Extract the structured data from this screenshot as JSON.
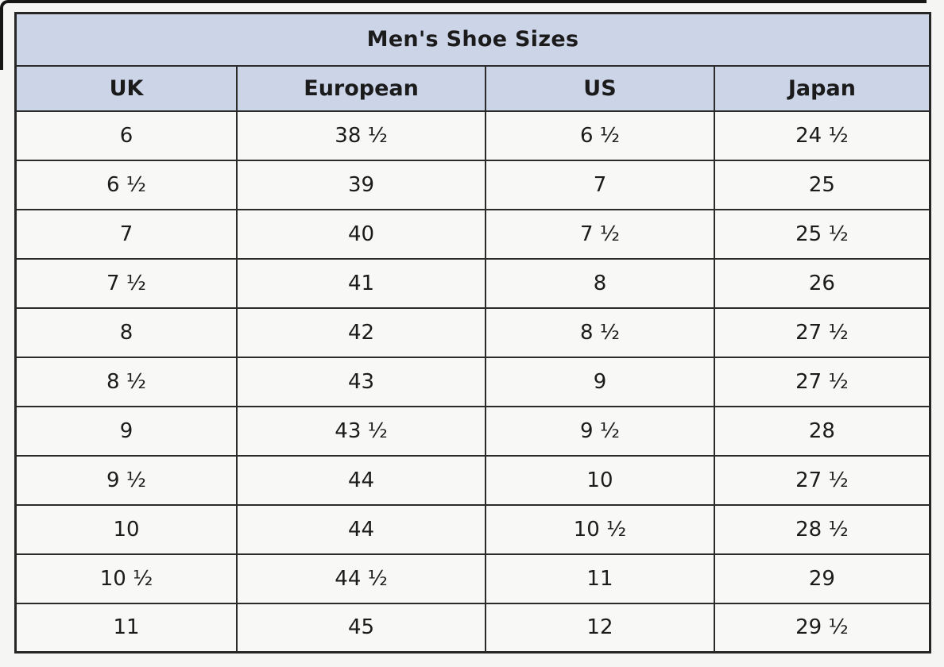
{
  "colors": {
    "header_bg": "#ccd4e8",
    "cell_bg": "#f8f8f6",
    "border": "#2b2b2b",
    "text": "#1b1b1b",
    "page_bg": "#f5f5f3",
    "frame": "#161616"
  },
  "chart_data": {
    "type": "table",
    "title": "Men's Shoe Sizes",
    "columns": [
      "UK",
      "European",
      "US",
      "Japan"
    ],
    "rows": [
      [
        "6",
        "38 ½",
        "6 ½",
        "24 ½"
      ],
      [
        "6 ½",
        "39",
        "7",
        "25"
      ],
      [
        "7",
        "40",
        "7 ½",
        "25 ½"
      ],
      [
        "7 ½",
        "41",
        "8",
        "26"
      ],
      [
        "8",
        "42",
        "8 ½",
        "27 ½"
      ],
      [
        "8 ½",
        "43",
        "9",
        "27 ½"
      ],
      [
        "9",
        "43 ½",
        "9 ½",
        "28"
      ],
      [
        "9 ½",
        "44",
        "10",
        "27 ½"
      ],
      [
        "10",
        "44",
        "10 ½",
        "28 ½"
      ],
      [
        "10 ½",
        "44 ½",
        "11",
        "29"
      ],
      [
        "11",
        "45",
        "12",
        "29 ½"
      ]
    ]
  }
}
